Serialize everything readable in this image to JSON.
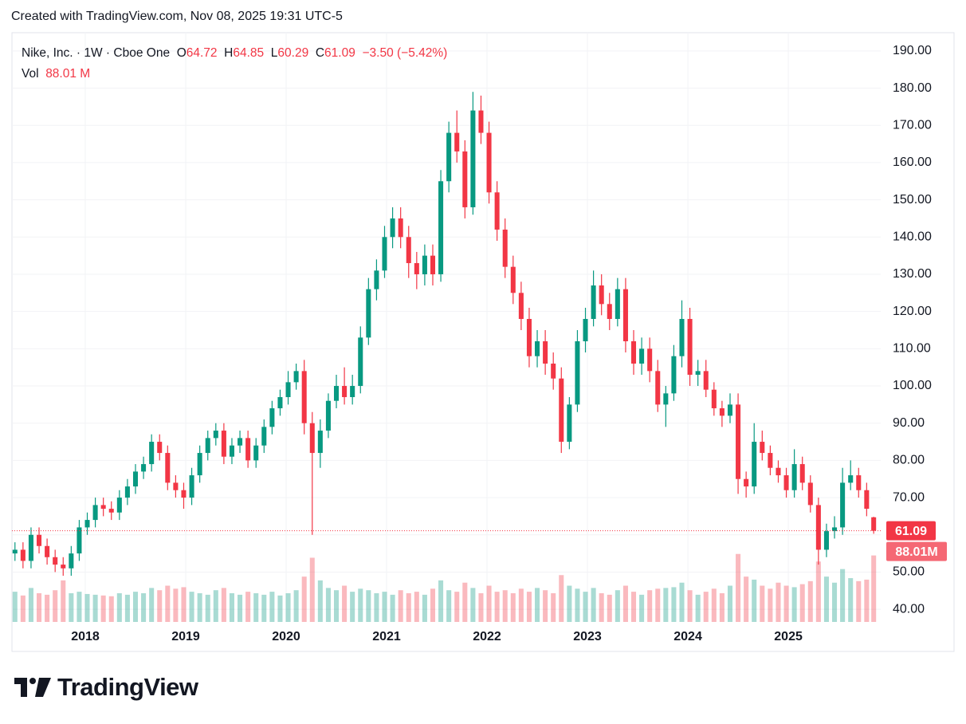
{
  "chart_data": {
    "type": "candlestick",
    "header": "Created with TradingView.com, Nov 08, 2025 19:31 UTC-5",
    "legend": {
      "symbol": "Nike, Inc. · 1W · Cboe One",
      "o_label": "O",
      "h_label": "H",
      "l_label": "L",
      "c_label": "C",
      "change": "−3.50 (−5.42%)",
      "vol_label": "Vol",
      "vol_value": "88.01 M"
    },
    "volume_badge": "88.01M",
    "up_color": "#089981",
    "down_color": "#f23645",
    "x": [
      2017.3,
      2017.38,
      2017.46,
      2017.54,
      2017.62,
      2017.7,
      2017.78,
      2017.86,
      2017.94,
      2018.02,
      2018.1,
      2018.18,
      2018.26,
      2018.34,
      2018.42,
      2018.5,
      2018.58,
      2018.66,
      2018.74,
      2018.82,
      2018.9,
      2018.98,
      2019.06,
      2019.14,
      2019.22,
      2019.3,
      2019.38,
      2019.46,
      2019.54,
      2019.62,
      2019.7,
      2019.78,
      2019.86,
      2019.94,
      2020.02,
      2020.1,
      2020.18,
      2020.26,
      2020.34,
      2020.42,
      2020.5,
      2020.58,
      2020.66,
      2020.74,
      2020.82,
      2020.9,
      2020.98,
      2021.06,
      2021.14,
      2021.22,
      2021.3,
      2021.38,
      2021.46,
      2021.54,
      2021.62,
      2021.7,
      2021.78,
      2021.86,
      2021.94,
      2022.02,
      2022.1,
      2022.18,
      2022.26,
      2022.34,
      2022.42,
      2022.5,
      2022.58,
      2022.66,
      2022.74,
      2022.82,
      2022.9,
      2022.98,
      2023.06,
      2023.14,
      2023.22,
      2023.3,
      2023.38,
      2023.46,
      2023.54,
      2023.62,
      2023.7,
      2023.78,
      2023.86,
      2023.94,
      2024.02,
      2024.1,
      2024.18,
      2024.26,
      2024.34,
      2024.42,
      2024.5,
      2024.58,
      2024.66,
      2024.74,
      2024.82,
      2024.9,
      2024.98,
      2025.06,
      2025.14,
      2025.22,
      2025.3,
      2025.38,
      2025.46,
      2025.54,
      2025.62,
      2025.7,
      2025.78,
      2025.85
    ],
    "open": [
      55,
      56,
      53,
      60,
      57,
      54,
      52,
      51,
      55,
      62,
      64,
      68,
      67,
      66,
      70,
      73,
      77,
      79,
      85,
      82,
      74,
      72,
      70,
      76,
      82,
      86,
      88,
      81,
      84,
      86,
      80,
      84,
      89,
      94,
      97,
      101,
      104,
      90,
      82,
      88,
      96,
      100,
      97,
      100,
      113,
      126,
      131,
      140,
      145,
      140,
      133,
      130,
      135,
      130,
      155,
      168,
      163,
      148,
      174,
      168,
      152,
      142,
      132,
      125,
      118,
      108,
      112,
      106,
      102,
      85,
      95,
      112,
      118,
      127,
      122,
      118,
      126,
      112,
      106,
      110,
      104,
      95,
      98,
      108,
      118,
      103,
      104,
      99,
      94,
      92,
      95,
      75,
      73,
      85,
      82,
      78,
      76,
      72,
      79,
      74,
      68,
      56,
      61,
      62,
      74,
      76,
      72,
      64.72
    ],
    "high": [
      58,
      58,
      62,
      62,
      59,
      56,
      54,
      57,
      64,
      66,
      70,
      70,
      69,
      72,
      75,
      79,
      81,
      87,
      87,
      84,
      76,
      74,
      78,
      84,
      88,
      90,
      90,
      86,
      88,
      88,
      86,
      91,
      96,
      99,
      104,
      106,
      107,
      93,
      91,
      98,
      103,
      105,
      103,
      116,
      129,
      134,
      143,
      148,
      148,
      143,
      136,
      138,
      138,
      158,
      171,
      174,
      166,
      179,
      178,
      171,
      155,
      145,
      135,
      128,
      121,
      115,
      115,
      109,
      105,
      97,
      115,
      121,
      131,
      130,
      125,
      129,
      129,
      115,
      113,
      113,
      107,
      100,
      111,
      123,
      121,
      107,
      107,
      101,
      96,
      98,
      98,
      77,
      90,
      88,
      84,
      80,
      78,
      83,
      81,
      76,
      70,
      63,
      65,
      78,
      80,
      78,
      74,
      64.85
    ],
    "low": [
      53,
      51,
      51,
      55,
      52,
      50,
      49,
      49,
      53,
      60,
      62,
      65,
      64,
      64,
      68,
      71,
      75,
      77,
      80,
      72,
      70,
      67,
      68,
      74,
      80,
      84,
      79,
      79,
      82,
      78,
      78,
      82,
      87,
      92,
      95,
      99,
      87,
      60,
      78,
      86,
      94,
      95,
      95,
      98,
      111,
      123,
      129,
      137,
      137,
      129,
      126,
      127,
      127,
      128,
      152,
      160,
      145,
      146,
      165,
      149,
      139,
      129,
      122,
      115,
      105,
      105,
      103,
      99,
      82,
      83,
      93,
      109,
      116,
      119,
      115,
      116,
      109,
      103,
      103,
      101,
      93,
      89,
      96,
      105,
      100,
      100,
      97,
      92,
      89,
      90,
      71,
      70,
      71,
      80,
      76,
      74,
      70,
      70,
      72,
      66,
      52,
      54,
      59,
      60,
      72,
      70,
      65,
      60.29
    ],
    "close": [
      56,
      53,
      60,
      57,
      54,
      52,
      51,
      55,
      62,
      64,
      68,
      67,
      66,
      70,
      73,
      77,
      79,
      85,
      82,
      74,
      72,
      70,
      76,
      82,
      86,
      88,
      81,
      84,
      86,
      80,
      84,
      89,
      94,
      97,
      101,
      104,
      90,
      82,
      88,
      96,
      100,
      97,
      100,
      113,
      126,
      131,
      140,
      145,
      140,
      133,
      130,
      135,
      130,
      155,
      168,
      163,
      148,
      174,
      168,
      152,
      142,
      132,
      125,
      118,
      108,
      112,
      106,
      102,
      85,
      95,
      112,
      118,
      127,
      122,
      118,
      126,
      112,
      106,
      110,
      104,
      95,
      98,
      108,
      118,
      103,
      104,
      99,
      94,
      92,
      95,
      75,
      73,
      85,
      82,
      78,
      76,
      72,
      79,
      74,
      68,
      56,
      61,
      62,
      74,
      76,
      72,
      67,
      61.09
    ],
    "volume": [
      40,
      35,
      45,
      38,
      36,
      42,
      55,
      38,
      40,
      37,
      36,
      35,
      34,
      38,
      36,
      40,
      38,
      45,
      42,
      48,
      44,
      46,
      40,
      38,
      36,
      42,
      45,
      38,
      36,
      40,
      38,
      36,
      40,
      35,
      38,
      42,
      60,
      85,
      55,
      45,
      42,
      48,
      40,
      44,
      42,
      38,
      40,
      36,
      42,
      38,
      40,
      36,
      44,
      55,
      42,
      40,
      52,
      45,
      38,
      48,
      40,
      42,
      38,
      44,
      40,
      45,
      42,
      38,
      62,
      48,
      44,
      40,
      45,
      38,
      36,
      42,
      48,
      40,
      36,
      42,
      44,
      45,
      46,
      52,
      42,
      36,
      40,
      44,
      38,
      48,
      90,
      60,
      56,
      48,
      44,
      52,
      48,
      46,
      50,
      54,
      80,
      60,
      52,
      70,
      58,
      54,
      56,
      88.01
    ],
    "xlim": [
      2017.27,
      2025.92
    ],
    "xticks": [
      2018,
      2019,
      2020,
      2021,
      2022,
      2023,
      2024,
      2025
    ],
    "ylim": [
      36.6,
      194.9
    ],
    "yticks": [
      {
        "value": 40,
        "label": "40.00"
      },
      {
        "value": 50,
        "label": "50.00"
      },
      {
        "value": 60,
        "label": "60.00"
      },
      {
        "value": 70,
        "label": "70.00"
      },
      {
        "value": 80,
        "label": "80.00"
      },
      {
        "value": 90,
        "label": "90.00"
      },
      {
        "value": 100,
        "label": "100.00"
      },
      {
        "value": 110,
        "label": "110.00"
      },
      {
        "value": 120,
        "label": "120.00"
      },
      {
        "value": 130,
        "label": "130.00"
      },
      {
        "value": 140,
        "label": "140.00"
      },
      {
        "value": 150,
        "label": "150.00"
      },
      {
        "value": 160,
        "label": "160.00"
      },
      {
        "value": 170,
        "label": "170.00"
      },
      {
        "value": 180,
        "label": "180.00"
      },
      {
        "value": 190,
        "label": "190.00"
      }
    ],
    "y2lim": [
      0,
      780
    ],
    "grid": true,
    "footer": "TradingView"
  }
}
